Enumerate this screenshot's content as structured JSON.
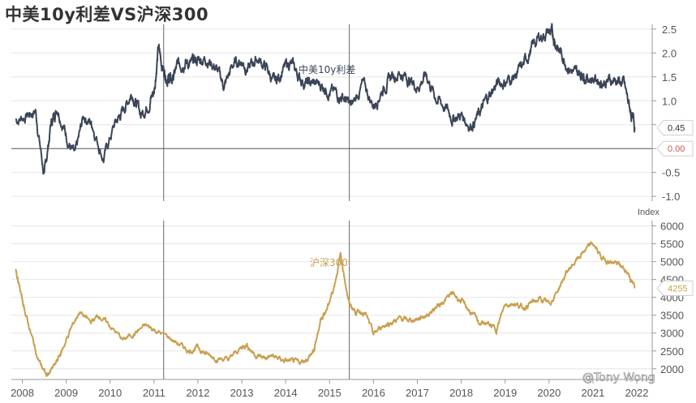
{
  "title": "中美10y利差VS沪深300",
  "watermark": "@Tony Wong",
  "chart_data": [
    {
      "type": "line",
      "name": "spread-chart",
      "series_name": "中美10y利差",
      "color": "#3b4557",
      "ylim": [
        -1.1,
        2.6
      ],
      "yticks": [
        -1.0,
        -0.5,
        0.0,
        0.5,
        1.0,
        1.5,
        2.0,
        2.5
      ],
      "ytick_labels": [
        "-1.0",
        "-0.5",
        "0.0",
        "0.5",
        "1.0",
        "1.5",
        "2.0",
        "2.5"
      ],
      "zero_line": true,
      "last_value_label": "0.45",
      "zero_value_label": "0.00",
      "x": [
        2007.85,
        2008.1,
        2008.3,
        2008.5,
        2008.65,
        2008.8,
        2009.0,
        2009.2,
        2009.4,
        2009.6,
        2009.85,
        2010.1,
        2010.3,
        2010.5,
        2010.7,
        2010.9,
        2011.0,
        2011.1,
        2011.2,
        2011.3,
        2011.4,
        2011.55,
        2011.7,
        2011.85,
        2012.0,
        2012.2,
        2012.4,
        2012.6,
        2012.8,
        2013.0,
        2013.15,
        2013.35,
        2013.55,
        2013.75,
        2013.9,
        2014.1,
        2014.3,
        2014.5,
        2014.7,
        2014.9,
        2015.1,
        2015.3,
        2015.5,
        2015.75,
        2016.0,
        2016.2,
        2016.4,
        2016.6,
        2016.8,
        2017.0,
        2017.2,
        2017.4,
        2017.6,
        2017.8,
        2018.0,
        2018.2,
        2018.4,
        2018.6,
        2018.8,
        2019.0,
        2019.2,
        2019.4,
        2019.6,
        2019.8,
        2020.0,
        2020.1,
        2020.2,
        2020.4,
        2020.6,
        2020.75,
        2020.9,
        2021.1,
        2021.3,
        2021.5,
        2021.7,
        2021.85,
        2021.95
      ],
      "y": [
        0.6,
        0.7,
        0.8,
        -0.6,
        0.5,
        0.9,
        0.3,
        -0.2,
        0.7,
        0.5,
        -0.2,
        0.5,
        0.8,
        1.2,
        0.7,
        1.0,
        1.2,
        2.1,
        1.7,
        1.5,
        1.4,
        1.75,
        1.85,
        1.75,
        1.85,
        1.9,
        1.7,
        1.3,
        1.75,
        1.85,
        1.65,
        1.9,
        1.7,
        1.35,
        1.6,
        1.8,
        1.5,
        1.35,
        1.35,
        1.3,
        1.15,
        1.1,
        0.85,
        1.35,
        0.9,
        1.25,
        1.5,
        1.6,
        1.45,
        1.3,
        1.55,
        1.1,
        0.9,
        0.65,
        0.7,
        0.5,
        0.7,
        1.05,
        1.35,
        1.4,
        1.5,
        1.7,
        2.1,
        2.35,
        2.45,
        2.35,
        2.1,
        1.8,
        1.55,
        1.6,
        1.5,
        1.45,
        1.4,
        1.45,
        1.35,
        0.8,
        0.45
      ]
    },
    {
      "type": "line",
      "name": "csi300-chart",
      "series_name": "沪深300",
      "color": "#c9a050",
      "unit_label": "Index",
      "ylim": [
        1700,
        6150
      ],
      "yticks": [
        2000,
        2500,
        3000,
        3500,
        4000,
        4500,
        5000,
        5500,
        6000
      ],
      "ytick_labels": [
        "2000",
        "2500",
        "3000",
        "3500",
        "4000",
        "4500",
        "5000",
        "5500",
        "6000"
      ],
      "last_value_label": "4255",
      "x": [
        2007.85,
        2008.0,
        2008.15,
        2008.35,
        2008.55,
        2008.75,
        2008.9,
        2009.1,
        2009.3,
        2009.55,
        2009.75,
        2010.0,
        2010.3,
        2010.55,
        2010.8,
        2011.0,
        2011.3,
        2011.55,
        2011.8,
        2012.0,
        2012.2,
        2012.45,
        2012.7,
        2012.95,
        2013.1,
        2013.3,
        2013.5,
        2013.7,
        2013.9,
        2014.1,
        2014.3,
        2014.5,
        2014.65,
        2014.8,
        2014.95,
        2015.1,
        2015.25,
        2015.45,
        2015.6,
        2015.8,
        2016.0,
        2016.2,
        2016.4,
        2016.6,
        2016.8,
        2017.0,
        2017.2,
        2017.4,
        2017.6,
        2017.8,
        2018.0,
        2018.2,
        2018.4,
        2018.6,
        2018.8,
        2019.0,
        2019.2,
        2019.4,
        2019.6,
        2019.8,
        2020.0,
        2020.2,
        2020.4,
        2020.6,
        2020.8,
        2021.0,
        2021.2,
        2021.4,
        2021.6,
        2021.8,
        2021.95
      ],
      "y": [
        4800,
        3900,
        3200,
        2300,
        1800,
        2100,
        2500,
        3100,
        3600,
        3300,
        3500,
        3200,
        2800,
        3000,
        3200,
        3100,
        2900,
        2700,
        2500,
        2600,
        2400,
        2300,
        2250,
        2550,
        2700,
        2400,
        2300,
        2350,
        2250,
        2200,
        2150,
        2300,
        2500,
        3400,
        3700,
        4300,
        5200,
        3800,
        3600,
        3600,
        2950,
        3200,
        3300,
        3400,
        3350,
        3400,
        3500,
        3700,
        3900,
        4100,
        3900,
        3600,
        3300,
        3250,
        3100,
        3800,
        3850,
        3700,
        3850,
        3950,
        3800,
        4200,
        4700,
        5000,
        5300,
        5500,
        5100,
        5000,
        4900,
        4700,
        4255
      ]
    }
  ],
  "x_axis": {
    "ticks": [
      2008,
      2009,
      2010,
      2011,
      2012,
      2013,
      2014,
      2015,
      2016,
      2017,
      2018,
      2019,
      2020,
      2021,
      2022
    ],
    "labels": [
      "2008",
      "2009",
      "2010",
      "2011",
      "2012",
      "2013",
      "2014",
      "2015",
      "2016",
      "2017",
      "2018",
      "2019",
      "2020",
      "2021",
      "2022"
    ],
    "markers": [
      2011.22,
      2015.45
    ]
  }
}
